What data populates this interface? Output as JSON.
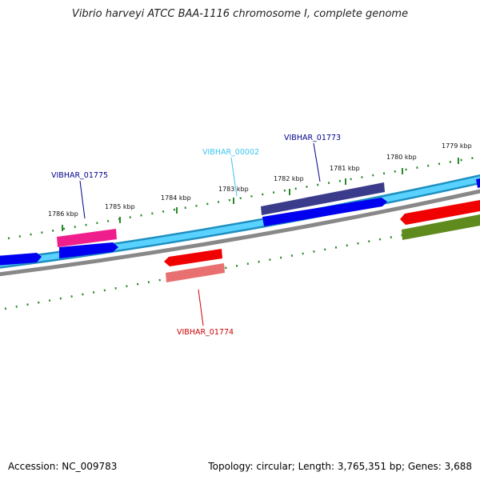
{
  "header": {
    "title": "Vibrio harveyi ATCC BAA-1116 chromosome I, complete genome"
  },
  "footer": {
    "accession": "Accession: NC_009783",
    "topology": "Topology: circular; Length: 3,765,351 bp; Genes: 3,688"
  },
  "colors": {
    "backbone_outer": "#1f8fc0",
    "backbone_inner": "#5ad2ff",
    "minus_line": "#888888",
    "tick": "#2a8a2a",
    "blue_gene": "#0000f0",
    "navy_gene": "#3b3b8c",
    "pink_gene": "#f01e8c",
    "red_gene": "#f00000",
    "salmon_gene": "#e87070",
    "olive_gene": "#5e8a1e",
    "label_navy": "#00008b",
    "label_cyan": "#39c5f0",
    "label_red": "#cc0000"
  },
  "ruler": {
    "tick_labels": [
      "1786 kbp",
      "1785 kbp",
      "1784 kbp",
      "1783 kbp",
      "1782 kbp",
      "1781 kbp",
      "1780 kbp",
      "1779 kbp"
    ]
  },
  "genes": [
    {
      "label": "VIBHAR_01775",
      "color": "label_navy"
    },
    {
      "label": "VIBHAR_00002",
      "color": "label_cyan"
    },
    {
      "label": "VIBHAR_01773",
      "color": "label_navy"
    },
    {
      "label": "VIBHAR_01774",
      "color": "label_red"
    }
  ]
}
